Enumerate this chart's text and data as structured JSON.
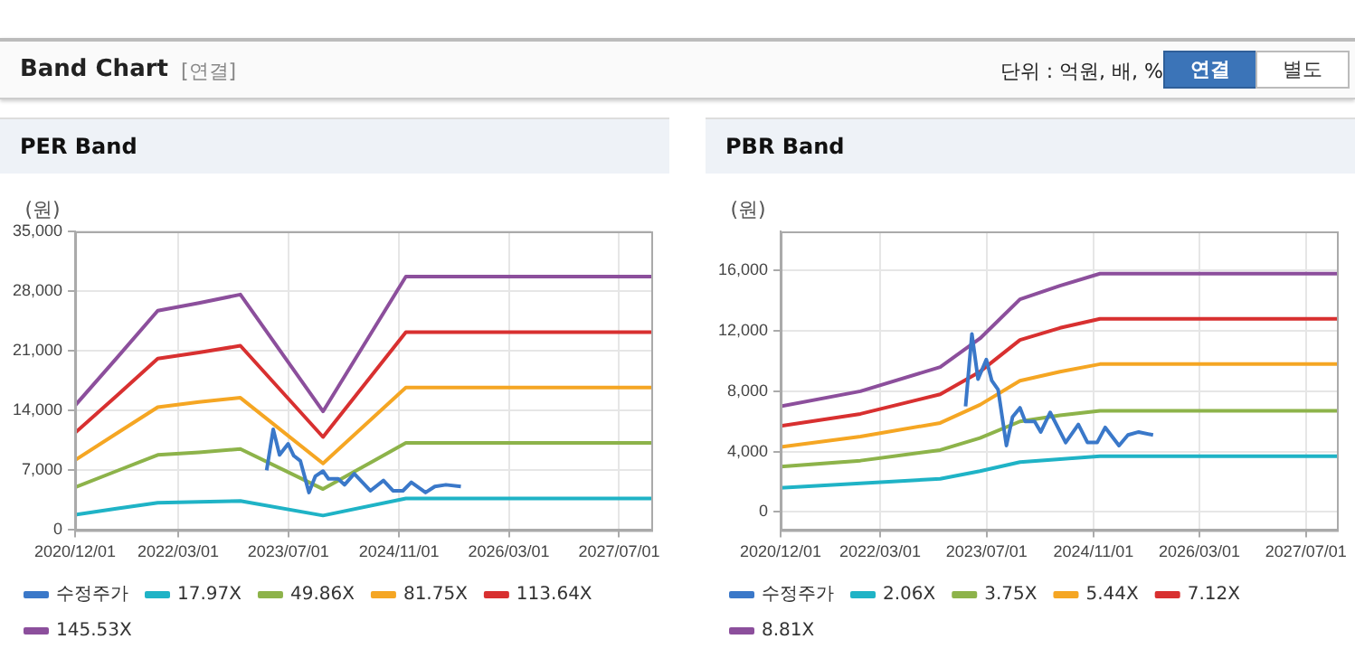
{
  "chart_data": [
    {
      "type": "other",
      "title": "Band Chart",
      "annotations": [
        "[연결]",
        "단위 : 억원, 배, %",
        "연결",
        "별도"
      ]
    },
    {
      "type": "line",
      "title": "PER Band",
      "ylabel": "(원)",
      "xlim": [
        "2020-12-01",
        "2027-11-20"
      ],
      "xticks": [
        {
          "value": "2020-12-01",
          "label": "2020/12/01"
        },
        {
          "value": "2022-03-01",
          "label": "2022/03/01"
        },
        {
          "value": "2023-07-01",
          "label": "2023/07/01"
        },
        {
          "value": "2024-11-01",
          "label": "2024/11/01"
        },
        {
          "value": "2026-03-01",
          "label": "2026/03/01"
        },
        {
          "value": "2027-07-01",
          "label": "2027/07/01"
        }
      ],
      "ylim": [
        0,
        35000
      ],
      "yticks": [
        0,
        {
          "value": 7000,
          "label": "7,000"
        },
        {
          "value": 14000,
          "label": "14,000"
        },
        {
          "value": 21000,
          "label": "21,000"
        },
        {
          "value": 28000,
          "label": "28,000"
        },
        {
          "value": 35000,
          "label": "35,000"
        }
      ],
      "grid": true,
      "legend": "bottom",
      "marker": "none",
      "x": [
        "2020-12-01",
        "2021-06-01",
        "2021-12-01",
        "2022-06-01",
        "2022-12-01",
        "2023-12-01",
        "2024-12-01",
        "2027-11-20"
      ],
      "series": [
        {
          "name": "수정주가",
          "color": "#3a78c9",
          "x": [
            "2023-03-27",
            "2023-04-25",
            "2023-05-23",
            "2023-06-30",
            "2023-07-25",
            "2023-08-23",
            "2023-09-30",
            "2023-10-28",
            "2023-12-01",
            "2023-12-25",
            "2024-02-06",
            "2024-03-05",
            "2024-04-17",
            "2024-06-27",
            "2024-08-24",
            "2024-10-05",
            "2024-11-18",
            "2024-12-25",
            "2025-02-26",
            "2025-04-08",
            "2025-05-27",
            "2025-08-01"
          ],
          "values": [
            7000,
            11800,
            8800,
            10100,
            8700,
            8100,
            4400,
            6300,
            6900,
            6000,
            6000,
            5300,
            6600,
            4600,
            5800,
            4600,
            4600,
            5600,
            4400,
            5100,
            5300,
            5100
          ]
        },
        {
          "name": "17.97X",
          "color": "#1fb3c6",
          "values": [
            1800,
            2500,
            3200,
            3300,
            3400,
            1700,
            3700,
            3700
          ]
        },
        {
          "name": "49.86X",
          "color": "#8db34a",
          "values": [
            5000,
            6900,
            8800,
            9100,
            9500,
            4800,
            10200,
            10200
          ]
        },
        {
          "name": "81.75X",
          "color": "#f5a623",
          "values": [
            8200,
            11300,
            14400,
            15000,
            15500,
            7800,
            16700,
            16700
          ]
        },
        {
          "name": "113.64X",
          "color": "#d83030",
          "values": [
            11400,
            15700,
            20100,
            20800,
            21600,
            10900,
            23200,
            23200
          ]
        },
        {
          "name": "145.53X",
          "color": "#8c4f9c",
          "values": [
            14600,
            20100,
            25700,
            26600,
            27600,
            13900,
            29700,
            29700
          ]
        }
      ]
    },
    {
      "type": "line",
      "title": "PBR Band",
      "ylabel": "(원)",
      "xlim": [
        "2020-12-01",
        "2027-11-20"
      ],
      "xticks": [
        {
          "value": "2020-12-01",
          "label": "2020/12/01"
        },
        {
          "value": "2022-03-01",
          "label": "2022/03/01"
        },
        {
          "value": "2023-07-01",
          "label": "2023/07/01"
        },
        {
          "value": "2024-11-01",
          "label": "2024/11/01"
        },
        {
          "value": "2026-03-01",
          "label": "2026/03/01"
        },
        {
          "value": "2027-07-01",
          "label": "2027/07/01"
        }
      ],
      "ylim": [
        -1200,
        18600
      ],
      "yticks": [
        0,
        {
          "value": 4000,
          "label": "4,000"
        },
        {
          "value": 8000,
          "label": "8,000"
        },
        {
          "value": 12000,
          "label": "12,000"
        },
        {
          "value": 16000,
          "label": "16,000"
        }
      ],
      "grid": true,
      "legend": "bottom",
      "marker": "none",
      "x": [
        "2020-12-01",
        "2021-12-01",
        "2022-12-01",
        "2023-06-01",
        "2023-12-01",
        "2024-06-01",
        "2024-12-01",
        "2027-11-20"
      ],
      "series": [
        {
          "name": "수정주가",
          "color": "#3a78c9",
          "x": [
            "2023-03-27",
            "2023-04-25",
            "2023-05-23",
            "2023-06-30",
            "2023-07-25",
            "2023-08-23",
            "2023-09-30",
            "2023-10-28",
            "2023-12-01",
            "2023-12-25",
            "2024-02-06",
            "2024-03-05",
            "2024-04-17",
            "2024-06-27",
            "2024-08-24",
            "2024-10-05",
            "2024-11-18",
            "2024-12-25",
            "2025-02-26",
            "2025-04-08",
            "2025-05-27",
            "2025-08-01"
          ],
          "values": [
            7000,
            11800,
            8800,
            10100,
            8700,
            8100,
            4400,
            6300,
            6900,
            6000,
            6000,
            5300,
            6600,
            4600,
            5800,
            4600,
            4600,
            5600,
            4400,
            5100,
            5300,
            5100
          ]
        },
        {
          "name": "2.06X",
          "color": "#1fb3c6",
          "values": [
            1600,
            1900,
            2200,
            2700,
            3300,
            3500,
            3700,
            3700
          ]
        },
        {
          "name": "3.75X",
          "color": "#8db34a",
          "values": [
            3000,
            3400,
            4100,
            4900,
            6000,
            6400,
            6700,
            6700
          ]
        },
        {
          "name": "5.44X",
          "color": "#f5a623",
          "values": [
            4300,
            5000,
            5900,
            7100,
            8700,
            9300,
            9800,
            9800
          ]
        },
        {
          "name": "7.12X",
          "color": "#d83030",
          "values": [
            5700,
            6500,
            7800,
            9300,
            11400,
            12200,
            12800,
            12800
          ]
        },
        {
          "name": "8.81X",
          "color": "#8c4f9c",
          "values": [
            7000,
            8000,
            9600,
            11500,
            14100,
            15000,
            15800,
            15800
          ]
        }
      ]
    }
  ]
}
